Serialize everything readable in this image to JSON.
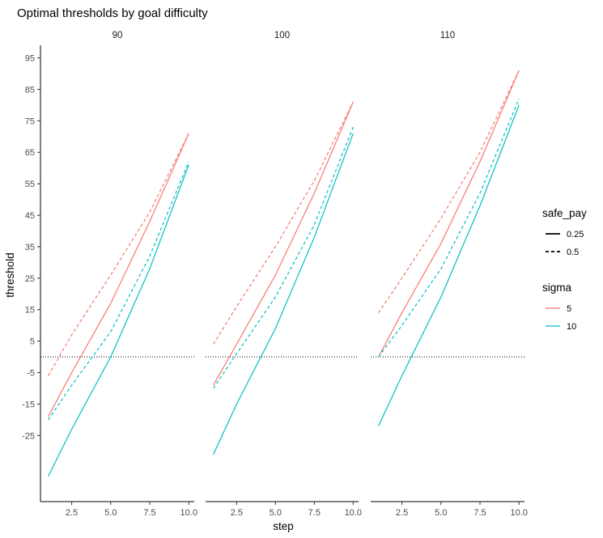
{
  "chart_data": {
    "type": "line",
    "title": "Optimal thresholds by goal difficulty",
    "xlabel": "step",
    "ylabel": "threshold",
    "xlim": [
      0.5,
      10.35
    ],
    "ylim": [
      -46,
      99
    ],
    "x_ticks": [
      2.5,
      5.0,
      7.5,
      10.0
    ],
    "x_tick_labels": [
      "2.5",
      "5.0",
      "7.5",
      "10.0"
    ],
    "y_ticks": [
      -25,
      -15,
      -5,
      5,
      15,
      25,
      35,
      45,
      55,
      65,
      75,
      85,
      95
    ],
    "y_tick_labels": [
      "-25",
      "-15",
      "-5",
      "5",
      "15",
      "25",
      "35",
      "45",
      "55",
      "65",
      "75",
      "85",
      "95"
    ],
    "reference_line": {
      "y": 0,
      "style": "dotted"
    },
    "grid": false,
    "legend_position": "right",
    "legends": [
      {
        "title": "safe_pay",
        "entries": [
          {
            "label": "0.25",
            "linetype": "solid"
          },
          {
            "label": "0.5",
            "linetype": "dashed"
          }
        ]
      },
      {
        "title": "sigma",
        "entries": [
          {
            "label": "5",
            "color": "#F8766D"
          },
          {
            "label": "10",
            "color": "#00BFC4"
          }
        ]
      }
    ],
    "facets": [
      {
        "label": "90",
        "series": [
          {
            "sigma": "5",
            "safe_pay": "0.25",
            "x": [
              1,
              2.5,
              5,
              7.5,
              10
            ],
            "y": [
              -19,
              -5,
              17,
              43,
              71
            ]
          },
          {
            "sigma": "5",
            "safe_pay": "0.5",
            "x": [
              1,
              2.5,
              5,
              7.5,
              10
            ],
            "y": [
              -6,
              7,
              26,
              46,
              71
            ]
          },
          {
            "sigma": "10",
            "safe_pay": "0.25",
            "x": [
              1,
              2.5,
              5,
              7.5,
              10
            ],
            "y": [
              -38,
              -23,
              0,
              28,
              61
            ]
          },
          {
            "sigma": "10",
            "safe_pay": "0.5",
            "x": [
              1,
              2.5,
              5,
              7.5,
              10
            ],
            "y": [
              -20,
              -9,
              8,
              32,
              62
            ]
          }
        ]
      },
      {
        "label": "100",
        "series": [
          {
            "sigma": "5",
            "safe_pay": "0.25",
            "x": [
              1,
              2.5,
              5,
              7.5,
              10
            ],
            "y": [
              -9,
              4,
              26,
              52,
              81
            ]
          },
          {
            "sigma": "5",
            "safe_pay": "0.5",
            "x": [
              1,
              2.5,
              5,
              7.5,
              10
            ],
            "y": [
              4,
              16,
              35,
              56,
              81
            ]
          },
          {
            "sigma": "10",
            "safe_pay": "0.25",
            "x": [
              1,
              2.5,
              5,
              7.5,
              10
            ],
            "y": [
              -31,
              -15,
              9,
              38,
              71
            ]
          },
          {
            "sigma": "10",
            "safe_pay": "0.5",
            "x": [
              1,
              2.5,
              5,
              7.5,
              10
            ],
            "y": [
              -10,
              1,
              19,
              42,
              73
            ]
          }
        ]
      },
      {
        "label": "110",
        "series": [
          {
            "sigma": "5",
            "safe_pay": "0.25",
            "x": [
              1,
              2.5,
              5,
              7.5,
              10
            ],
            "y": [
              0,
              14,
              36,
              62,
              91
            ]
          },
          {
            "sigma": "5",
            "safe_pay": "0.5",
            "x": [
              1,
              2.5,
              5,
              7.5,
              10
            ],
            "y": [
              14,
              25,
              44,
              65,
              91
            ]
          },
          {
            "sigma": "10",
            "safe_pay": "0.25",
            "x": [
              1,
              2.5,
              5,
              7.5,
              10
            ],
            "y": [
              -22,
              -6,
              19,
              48,
              80
            ]
          },
          {
            "sigma": "10",
            "safe_pay": "0.5",
            "x": [
              1,
              2.5,
              5,
              7.5,
              10
            ],
            "y": [
              0,
              10,
              28,
              52,
              82
            ]
          }
        ]
      }
    ]
  }
}
